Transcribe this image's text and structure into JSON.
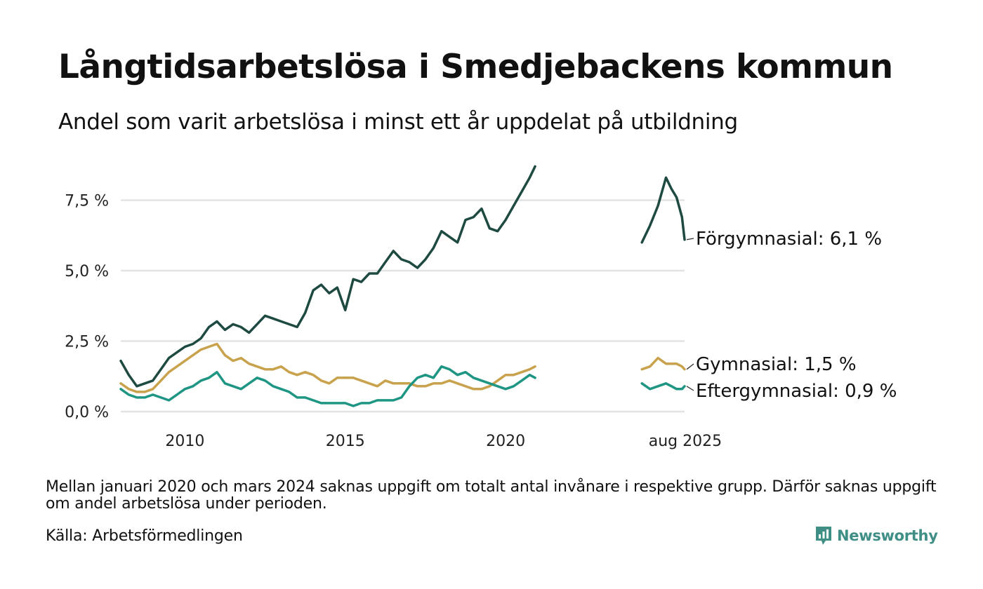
{
  "title": "Långtidsarbetslösa i Smedjebackens kommun",
  "subtitle": "Andel som varit arbetslösa i minst ett år uppdelat på utbildning",
  "note": "Mellan januari 2020 och mars 2024 saknas uppgift om totalt antal invånare i respektive grupp. Därför saknas uppgift om andel arbetslösa under perioden.",
  "source": "Källa: Arbetsförmedlingen",
  "brand": "Newsworthy",
  "colors": {
    "forgymnasial": "#1e4a42",
    "gymnasial": "#c9a24e",
    "eftergymnasial": "#1f9683",
    "grid": "#e3e3e3"
  },
  "chart_data": {
    "type": "line",
    "xlabel": "",
    "ylabel": "",
    "ylim": [
      0,
      8.8
    ],
    "yticks": [
      0,
      2.5,
      5.0,
      7.5
    ],
    "ytick_labels": [
      "0,0 %",
      "2,5 %",
      "5,0 %",
      "7,5 %"
    ],
    "xticks": [
      2010,
      2015,
      2020,
      2025.6
    ],
    "xtick_labels": [
      "2010",
      "2015",
      "2020",
      "aug 2025"
    ],
    "grid": true,
    "legend": "end-of-line labels",
    "series": [
      {
        "name": "Förgymnasial",
        "end_label": "Förgymnasial: 6,1 %",
        "color": "#1e4a42",
        "segments": [
          {
            "x": [
              2008.0,
              2008.25,
              2008.5,
              2008.75,
              2009.0,
              2009.25,
              2009.5,
              2009.75,
              2010.0,
              2010.25,
              2010.5,
              2010.75,
              2011.0,
              2011.25,
              2011.5,
              2011.75,
              2012.0,
              2012.25,
              2012.5,
              2012.75,
              2013.0,
              2013.25,
              2013.5,
              2013.75,
              2014.0,
              2014.25,
              2014.5,
              2014.75,
              2015.0,
              2015.25,
              2015.5,
              2015.75,
              2016.0,
              2016.25,
              2016.5,
              2016.75,
              2017.0,
              2017.25,
              2017.5,
              2017.75,
              2018.0,
              2018.25,
              2018.5,
              2018.75,
              2019.0,
              2019.25,
              2019.5,
              2019.75,
              2020.0,
              2020.25,
              2020.5,
              2020.75,
              2020.92
            ],
            "y": [
              1.8,
              1.3,
              0.9,
              1.0,
              1.1,
              1.5,
              1.9,
              2.1,
              2.3,
              2.4,
              2.6,
              3.0,
              3.2,
              2.9,
              3.1,
              3.0,
              2.8,
              3.1,
              3.4,
              3.3,
              3.2,
              3.1,
              3.0,
              3.5,
              4.3,
              4.5,
              4.2,
              4.4,
              3.6,
              4.7,
              4.6,
              4.9,
              4.9,
              5.3,
              5.7,
              5.4,
              5.3,
              5.1,
              5.4,
              5.8,
              6.4,
              6.2,
              6.0,
              6.8,
              6.9,
              7.2,
              6.5,
              6.4,
              6.8,
              7.3,
              7.8,
              8.3,
              8.7
            ]
          },
          {
            "x": [
              2024.25,
              2024.5,
              2024.75,
              2025.0,
              2025.17,
              2025.33,
              2025.5,
              2025.58
            ],
            "y": [
              6.0,
              6.6,
              7.3,
              8.3,
              7.9,
              7.6,
              6.9,
              6.1
            ]
          }
        ]
      },
      {
        "name": "Gymnasial",
        "end_label": "Gymnasial: 1,5 %",
        "color": "#c9a24e",
        "segments": [
          {
            "x": [
              2008.0,
              2008.25,
              2008.5,
              2008.75,
              2009.0,
              2009.25,
              2009.5,
              2009.75,
              2010.0,
              2010.25,
              2010.5,
              2010.75,
              2011.0,
              2011.25,
              2011.5,
              2011.75,
              2012.0,
              2012.25,
              2012.5,
              2012.75,
              2013.0,
              2013.25,
              2013.5,
              2013.75,
              2014.0,
              2014.25,
              2014.5,
              2014.75,
              2015.0,
              2015.25,
              2015.5,
              2015.75,
              2016.0,
              2016.25,
              2016.5,
              2016.75,
              2017.0,
              2017.25,
              2017.5,
              2017.75,
              2018.0,
              2018.25,
              2018.5,
              2018.75,
              2019.0,
              2019.25,
              2019.5,
              2019.75,
              2020.0,
              2020.25,
              2020.5,
              2020.75,
              2020.92
            ],
            "y": [
              1.0,
              0.8,
              0.7,
              0.7,
              0.8,
              1.1,
              1.4,
              1.6,
              1.8,
              2.0,
              2.2,
              2.3,
              2.4,
              2.0,
              1.8,
              1.9,
              1.7,
              1.6,
              1.5,
              1.5,
              1.6,
              1.4,
              1.3,
              1.4,
              1.3,
              1.1,
              1.0,
              1.2,
              1.2,
              1.2,
              1.1,
              1.0,
              0.9,
              1.1,
              1.0,
              1.0,
              1.0,
              0.9,
              0.9,
              1.0,
              1.0,
              1.1,
              1.0,
              0.9,
              0.8,
              0.8,
              0.9,
              1.1,
              1.3,
              1.3,
              1.4,
              1.5,
              1.6
            ]
          },
          {
            "x": [
              2024.25,
              2024.5,
              2024.75,
              2025.0,
              2025.17,
              2025.33,
              2025.5,
              2025.58
            ],
            "y": [
              1.5,
              1.6,
              1.9,
              1.7,
              1.7,
              1.7,
              1.6,
              1.5
            ]
          }
        ]
      },
      {
        "name": "Eftergymnasial",
        "end_label": "Eftergymnasial: 0,9 %",
        "color": "#1f9683",
        "segments": [
          {
            "x": [
              2008.0,
              2008.25,
              2008.5,
              2008.75,
              2009.0,
              2009.25,
              2009.5,
              2009.75,
              2010.0,
              2010.25,
              2010.5,
              2010.75,
              2011.0,
              2011.25,
              2011.5,
              2011.75,
              2012.0,
              2012.25,
              2012.5,
              2012.75,
              2013.0,
              2013.25,
              2013.5,
              2013.75,
              2014.0,
              2014.25,
              2014.5,
              2014.75,
              2015.0,
              2015.25,
              2015.5,
              2015.75,
              2016.0,
              2016.25,
              2016.5,
              2016.75,
              2017.0,
              2017.25,
              2017.5,
              2017.75,
              2018.0,
              2018.25,
              2018.5,
              2018.75,
              2019.0,
              2019.25,
              2019.5,
              2019.75,
              2020.0,
              2020.25,
              2020.5,
              2020.75,
              2020.92
            ],
            "y": [
              0.8,
              0.6,
              0.5,
              0.5,
              0.6,
              0.5,
              0.4,
              0.6,
              0.8,
              0.9,
              1.1,
              1.2,
              1.4,
              1.0,
              0.9,
              0.8,
              1.0,
              1.2,
              1.1,
              0.9,
              0.8,
              0.7,
              0.5,
              0.5,
              0.4,
              0.3,
              0.3,
              0.3,
              0.3,
              0.2,
              0.3,
              0.3,
              0.4,
              0.4,
              0.4,
              0.5,
              0.9,
              1.2,
              1.3,
              1.2,
              1.6,
              1.5,
              1.3,
              1.4,
              1.2,
              1.1,
              1.0,
              0.9,
              0.8,
              0.9,
              1.1,
              1.3,
              1.2
            ]
          },
          {
            "x": [
              2024.25,
              2024.5,
              2024.75,
              2025.0,
              2025.17,
              2025.33,
              2025.5,
              2025.58
            ],
            "y": [
              1.0,
              0.8,
              0.9,
              1.0,
              0.9,
              0.8,
              0.8,
              0.9
            ]
          }
        ]
      }
    ]
  }
}
